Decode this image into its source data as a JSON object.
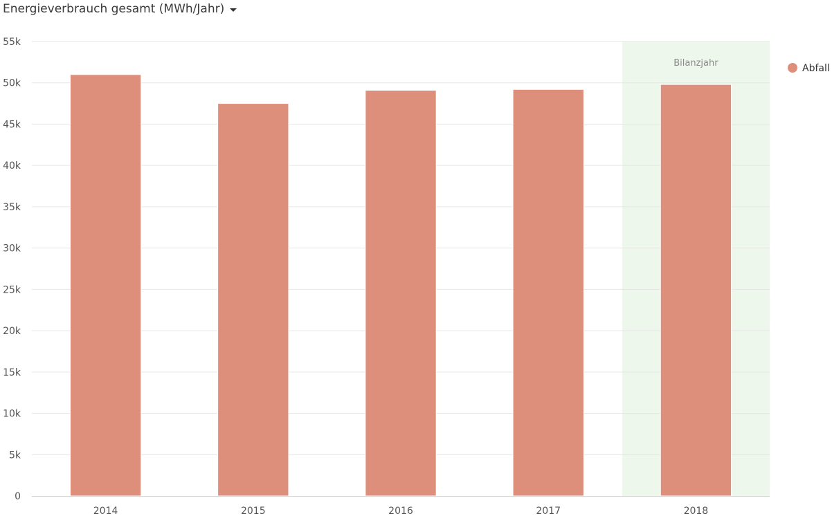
{
  "header": {
    "title": "Energieverbrauch gesamt (MWh/Jahr)",
    "dropdown_icon": "caret-down-icon"
  },
  "chart_data": {
    "type": "bar",
    "categories": [
      "2014",
      "2015",
      "2016",
      "2017",
      "2018"
    ],
    "series": [
      {
        "name": "Abfall",
        "color": "#dd8f7c",
        "values": [
          51000,
          47500,
          49100,
          49200,
          49800
        ]
      }
    ],
    "ylim": [
      0,
      55000
    ],
    "yticks": [
      0,
      5000,
      10000,
      15000,
      20000,
      25000,
      30000,
      35000,
      40000,
      45000,
      50000,
      55000
    ],
    "ytick_labels": [
      "0",
      "5k",
      "10k",
      "15k",
      "20k",
      "25k",
      "30k",
      "35k",
      "40k",
      "45k",
      "50k",
      "55k"
    ],
    "grid": true,
    "legend_position": "top-right",
    "highlight": {
      "category": "2018",
      "label": "Bilanzjahr",
      "color": "#eef7ec"
    }
  }
}
